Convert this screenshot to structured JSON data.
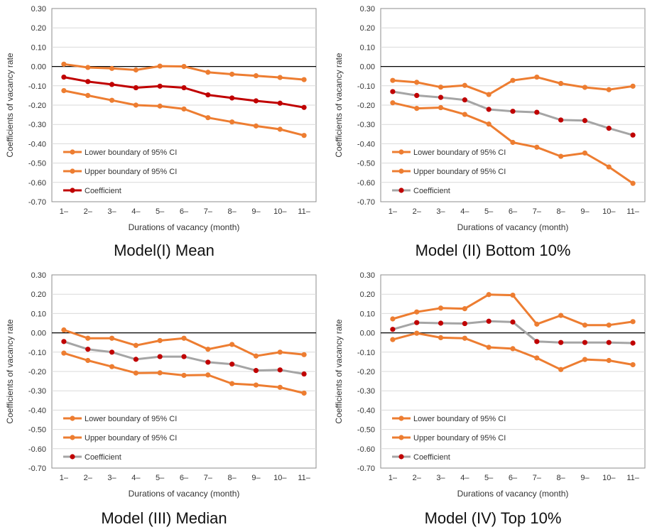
{
  "chart_data": [
    {
      "type": "line",
      "caption": "Model(I) Mean",
      "categories": [
        "1–",
        "2–",
        "3–",
        "4–",
        "5–",
        "6–",
        "7–",
        "8–",
        "9–",
        "10–",
        "11–"
      ],
      "xlabel": "Durations of vacancy (month)",
      "ylabel": "Coefficients of vacancy rate",
      "ylim": [
        -0.7,
        0.3
      ],
      "yticks": [
        "0.30",
        "0.20",
        "0.10",
        "0.00",
        "-0.10",
        "-0.20",
        "-0.30",
        "-0.40",
        "-0.50",
        "-0.60",
        "-0.70"
      ],
      "legend_position": "bottom-left",
      "series": [
        {
          "name": "Lower boundary of 95% CI",
          "line_color": "#ED7D31",
          "marker_color": "#ED7D31",
          "values": [
            -0.125,
            -0.15,
            -0.175,
            -0.2,
            -0.205,
            -0.22,
            -0.265,
            -0.287,
            -0.308,
            -0.325,
            -0.357
          ]
        },
        {
          "name": "Upper boundary of 95% CI",
          "line_color": "#ED7D31",
          "marker_color": "#ED7D31",
          "values": [
            0.012,
            -0.005,
            -0.01,
            -0.018,
            0.002,
            0.0,
            -0.03,
            -0.04,
            -0.048,
            -0.057,
            -0.068
          ]
        },
        {
          "name": "Coefficient",
          "line_color": "#C00000",
          "marker_color": "#C00000",
          "values": [
            -0.055,
            -0.078,
            -0.093,
            -0.11,
            -0.102,
            -0.11,
            -0.147,
            -0.163,
            -0.178,
            -0.19,
            -0.212
          ]
        }
      ]
    },
    {
      "type": "line",
      "caption": "Model (II) Bottom 10%",
      "categories": [
        "1–",
        "2–",
        "3–",
        "4–",
        "5–",
        "6–",
        "7–",
        "8–",
        "9–",
        "10–",
        "11–"
      ],
      "xlabel": "Durations of vacancy (month)",
      "ylabel": "Coefficients of vacancy rate",
      "ylim": [
        -0.7,
        0.3
      ],
      "yticks": [
        "0.30",
        "0.20",
        "0.10",
        "0.00",
        "-0.10",
        "-0.20",
        "-0.30",
        "-0.40",
        "-0.50",
        "-0.60",
        "-0.70"
      ],
      "legend_position": "bottom-left",
      "series": [
        {
          "name": "Lower boundary of 95% CI",
          "line_color": "#ED7D31",
          "marker_color": "#ED7D31",
          "values": [
            -0.188,
            -0.217,
            -0.213,
            -0.248,
            -0.298,
            -0.393,
            -0.418,
            -0.465,
            -0.448,
            -0.52,
            -0.605
          ]
        },
        {
          "name": "Upper boundary of 95% CI",
          "line_color": "#ED7D31",
          "marker_color": "#ED7D31",
          "values": [
            -0.072,
            -0.082,
            -0.107,
            -0.098,
            -0.145,
            -0.072,
            -0.055,
            -0.088,
            -0.108,
            -0.12,
            -0.102
          ]
        },
        {
          "name": "Coefficient",
          "line_color": "#A5A5A5",
          "marker_color": "#C00000",
          "values": [
            -0.13,
            -0.15,
            -0.16,
            -0.173,
            -0.222,
            -0.232,
            -0.237,
            -0.277,
            -0.28,
            -0.32,
            -0.355
          ]
        }
      ]
    },
    {
      "type": "line",
      "caption": "Model (III) Median",
      "categories": [
        "1–",
        "2–",
        "3–",
        "4–",
        "5–",
        "6–",
        "7–",
        "8–",
        "9–",
        "10–",
        "11–"
      ],
      "xlabel": "Durations of vacancy (month)",
      "ylabel": "Coefficients of vacancy rate",
      "ylim": [
        -0.7,
        0.3
      ],
      "yticks": [
        "0.30",
        "0.20",
        "0.10",
        "0.00",
        "-0.10",
        "-0.20",
        "-0.30",
        "-0.40",
        "-0.50",
        "-0.60",
        "-0.70"
      ],
      "legend_position": "bottom-left",
      "series": [
        {
          "name": "Lower boundary of 95% CI",
          "line_color": "#ED7D31",
          "marker_color": "#ED7D31",
          "values": [
            -0.105,
            -0.143,
            -0.175,
            -0.208,
            -0.207,
            -0.22,
            -0.218,
            -0.263,
            -0.27,
            -0.282,
            -0.312
          ]
        },
        {
          "name": "Upper boundary of 95% CI",
          "line_color": "#ED7D31",
          "marker_color": "#ED7D31",
          "values": [
            0.015,
            -0.028,
            -0.028,
            -0.065,
            -0.04,
            -0.028,
            -0.085,
            -0.06,
            -0.12,
            -0.1,
            -0.113
          ]
        },
        {
          "name": "Coefficient",
          "line_color": "#A5A5A5",
          "marker_color": "#C00000",
          "values": [
            -0.045,
            -0.085,
            -0.1,
            -0.137,
            -0.123,
            -0.123,
            -0.152,
            -0.162,
            -0.195,
            -0.192,
            -0.213
          ]
        }
      ]
    },
    {
      "type": "line",
      "caption": "Model (IV) Top 10%",
      "categories": [
        "1–",
        "2–",
        "3–",
        "4–",
        "5–",
        "6–",
        "7–",
        "8–",
        "9–",
        "10–",
        "11–"
      ],
      "xlabel": "Durations of vacancy (month)",
      "ylabel": "Coefficients of vacancy rate",
      "ylim": [
        -0.7,
        0.3
      ],
      "yticks": [
        "0.30",
        "0.20",
        "0.10",
        "0.00",
        "-0.10",
        "-0.20",
        "-0.30",
        "-0.40",
        "-0.50",
        "-0.60",
        "-0.70"
      ],
      "legend_position": "bottom-left",
      "series": [
        {
          "name": "Lower boundary of 95% CI",
          "line_color": "#ED7D31",
          "marker_color": "#ED7D31",
          "values": [
            -0.035,
            -0.002,
            -0.025,
            -0.028,
            -0.075,
            -0.082,
            -0.13,
            -0.19,
            -0.138,
            -0.143,
            -0.165
          ]
        },
        {
          "name": "Upper boundary of 95% CI",
          "line_color": "#ED7D31",
          "marker_color": "#ED7D31",
          "values": [
            0.072,
            0.108,
            0.128,
            0.125,
            0.198,
            0.195,
            0.045,
            0.09,
            0.04,
            0.04,
            0.058
          ]
        },
        {
          "name": "Coefficient",
          "line_color": "#A5A5A5",
          "marker_color": "#C00000",
          "values": [
            0.018,
            0.053,
            0.05,
            0.048,
            0.06,
            0.056,
            -0.045,
            -0.05,
            -0.05,
            -0.05,
            -0.053
          ]
        }
      ]
    }
  ]
}
